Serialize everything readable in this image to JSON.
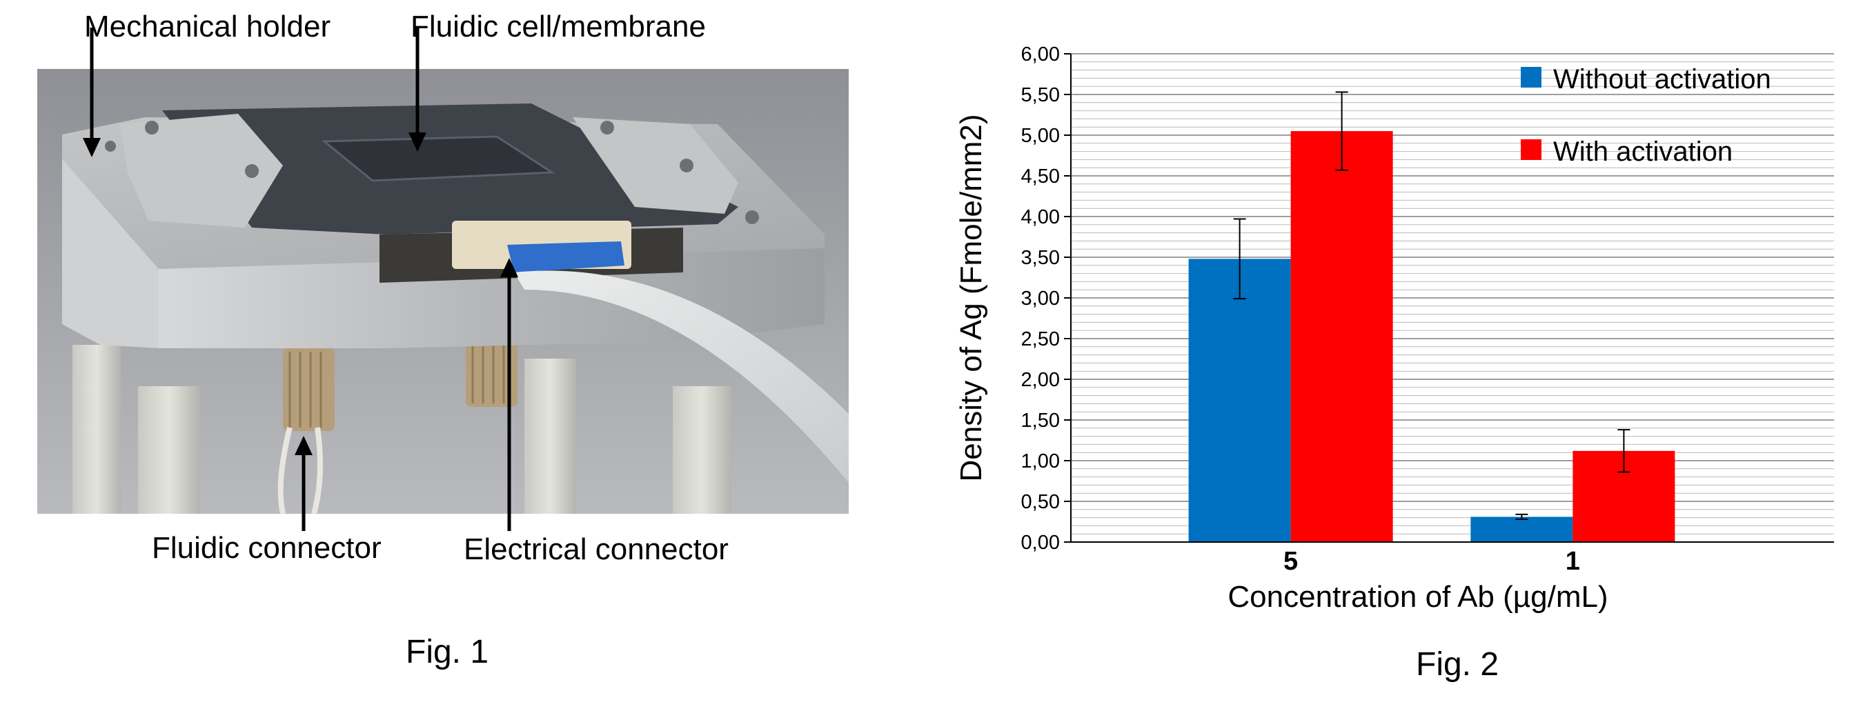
{
  "figure1": {
    "labels": {
      "mechanical_holder": "Mechanical holder",
      "fluidic_cell": "Fluidic cell/membrane",
      "fluidic_connector": "Fluidic connector",
      "electrical_connector": "Electrical connector"
    },
    "caption": "Fig. 1"
  },
  "figure2": {
    "caption": "Fig. 2"
  },
  "chart_data": {
    "type": "bar",
    "categories": [
      "5",
      "1"
    ],
    "series": [
      {
        "name": "Without activation",
        "color": "#0070C0",
        "values": [
          3.48,
          0.31
        ],
        "errors": [
          0.49,
          0.03
        ]
      },
      {
        "name": "With activation",
        "color": "#FF0000",
        "values": [
          5.05,
          1.12
        ],
        "errors": [
          0.48,
          0.26
        ]
      }
    ],
    "xlabel": "Concentration of Ab (µg/mL)",
    "ylabel": "Density of Ag (Fmole/mm2)",
    "ylim": [
      0,
      6
    ],
    "ytick_labels": [
      "0,00",
      "0,50",
      "1,00",
      "1,50",
      "2,00",
      "2,50",
      "3,00",
      "3,50",
      "4,00",
      "4,50",
      "5,00",
      "5,50",
      "6,00"
    ],
    "grid": true,
    "legend_position": "top-right"
  }
}
